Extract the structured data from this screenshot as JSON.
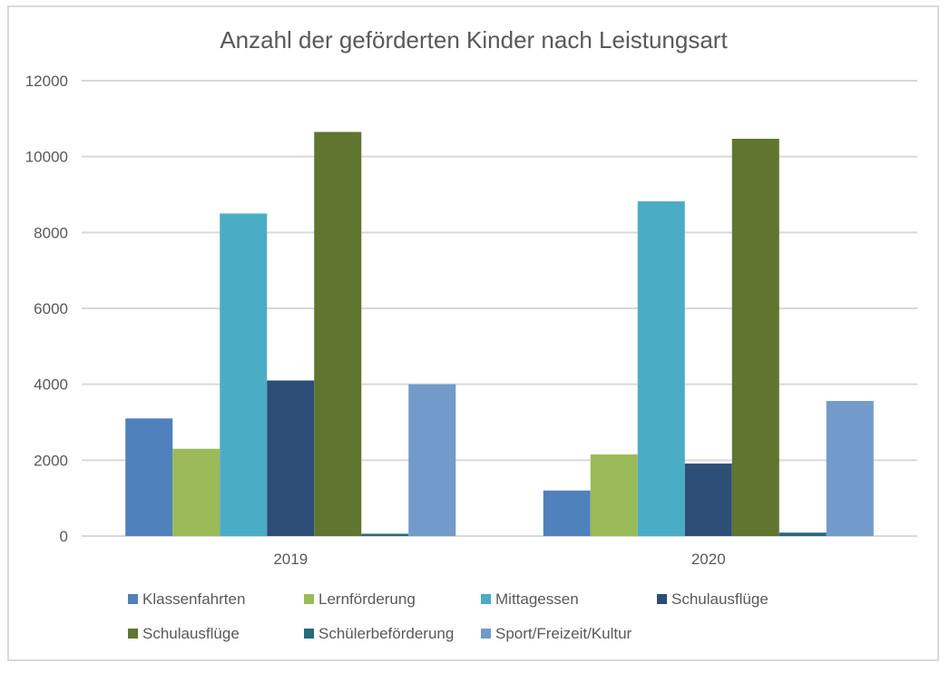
{
  "chart_data": {
    "type": "bar",
    "title": "Anzahl der geförderten Kinder nach Leistungsart",
    "xlabel": "",
    "ylabel": "",
    "categories": [
      "2019",
      "2020"
    ],
    "ylim": [
      0,
      12000
    ],
    "yticks": [
      0,
      2000,
      4000,
      6000,
      8000,
      10000,
      12000
    ],
    "ytick_labels": [
      "0",
      "2000",
      "4000",
      "6000",
      "8000",
      "10000",
      "12000"
    ],
    "grid": true,
    "legend_position": "bottom",
    "series": [
      {
        "name": "Klassenfahrten",
        "color": "#4f81bd",
        "values": [
          3100,
          1200
        ]
      },
      {
        "name": "Lernförderung",
        "color": "#9bbb59",
        "values": [
          2300,
          2150
        ]
      },
      {
        "name": "Mittagessen",
        "color": "#4bacc6",
        "values": [
          8500,
          8820
        ]
      },
      {
        "name": "Schulausflüge",
        "color": "#2c4d75",
        "values": [
          4100,
          1910
        ]
      },
      {
        "name": "Schulausflüge",
        "color": "#5f7530",
        "values": [
          10650,
          10470
        ]
      },
      {
        "name": "Schülerbeförderung",
        "color": "#276a7c",
        "values": [
          60,
          90
        ]
      },
      {
        "name": "Sport/Freizeit/Kultur",
        "color": "#729aca",
        "values": [
          4000,
          3560
        ]
      }
    ]
  }
}
